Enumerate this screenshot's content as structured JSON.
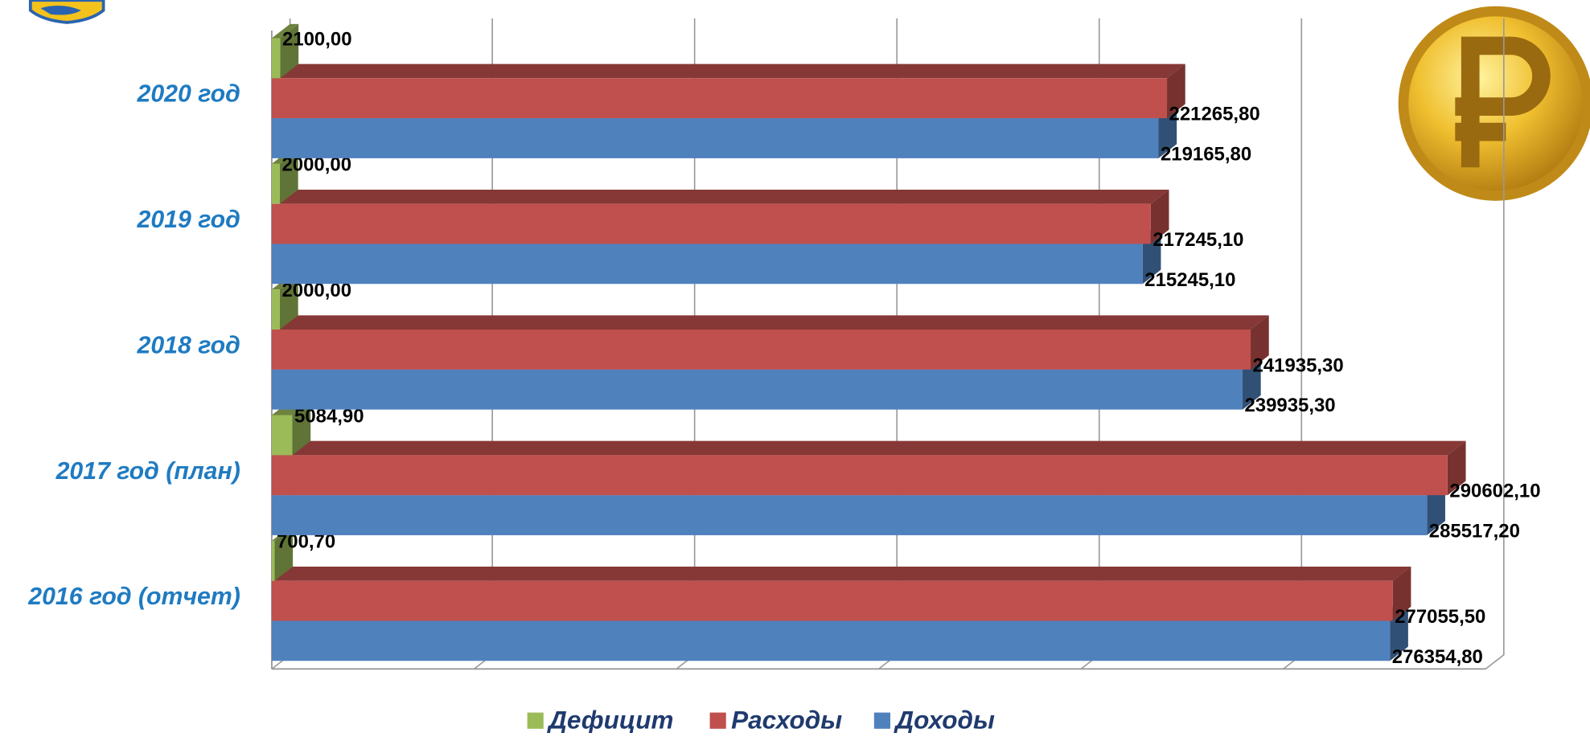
{
  "chart_data": {
    "type": "bar3d-horizontal",
    "categories": [
      "2016 год (отчет)",
      "2017 год  (план)",
      "2018 год",
      "2019 год",
      "2020 год"
    ],
    "series": [
      {
        "name": "Дефицит",
        "color": "#9bbb59",
        "values": [
          700.7,
          5084.9,
          2000,
          2000,
          2100
        ],
        "value_labels": [
          "700,70",
          "5084,90",
          "2000,00",
          "2000,00",
          "2100,00"
        ]
      },
      {
        "name": "Расходы",
        "color": "#c0504d",
        "values": [
          277055.5,
          290602.1,
          241935.3,
          217245.1,
          221265.8
        ],
        "value_labels": [
          "277055,50",
          "290602,10",
          "241935,30",
          "217245,10",
          "221265,80"
        ]
      },
      {
        "name": "Доходы",
        "color": "#4f81bd",
        "values": [
          276354.8,
          285517.2,
          239935.3,
          215245.1,
          219165.8
        ],
        "value_labels": [
          "276354,80",
          "285517,20",
          "239935,30",
          "215245,10",
          "219165,80"
        ]
      }
    ],
    "xlim": [
      0,
      300000
    ],
    "xticks": [
      0,
      50000,
      100000,
      150000,
      200000,
      250000,
      300000
    ],
    "grid": true,
    "legend": "bottom"
  }
}
